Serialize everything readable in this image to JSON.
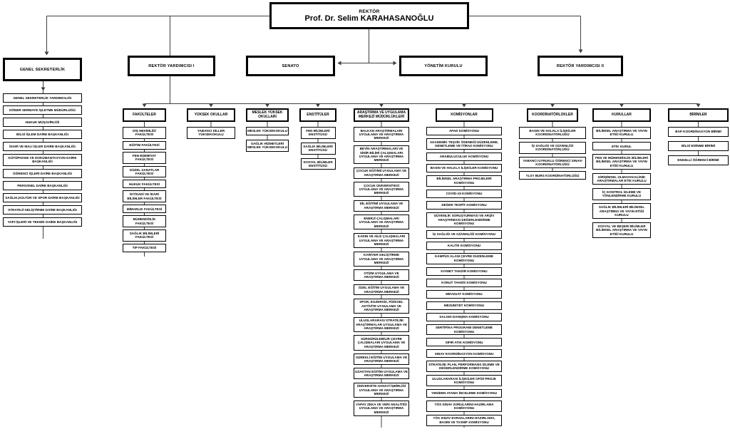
{
  "root": {
    "title": "REKTÖR",
    "name": "Prof. Dr. Selim KARAHASANOĞLU"
  },
  "level2": {
    "genel_sekreterlik": "GENEL SEKRETERLİK",
    "rektor_yardimcisi_1": "REKTÖR YARDIMCISI I",
    "senato": "SENATO",
    "yonetim_kurulu": "YÖNETİM KURULU",
    "rektor_yardimcisi_2": "REKTÖR YARDIMCISI II"
  },
  "genel_sekreterlik_units": [
    "GENEL SEKRETERLİK YARDIMCILIĞI",
    "DÖNER SERMAYE İŞLETME MÜDÜRLÜĞÜ",
    "HUKUK MÜŞAVİRLİĞİ",
    "BİLGİ İŞLEM DAİRE BAŞKANLIĞI",
    "İDARİ VE MALİ İŞLER DAİRE BAŞKANLIĞI",
    "KÜTÜPHANE VE DOKÜMANTASYON DAİRE BAŞKANLIĞI",
    "ÖĞRENCİ İŞLERİ DAİRE BAŞKANLIĞI",
    "PERSONEL DAİRE BAŞKANLIĞI",
    "SAĞLIK,KÜLTÜR VE SPOR DAİRE BAŞKANLIĞI",
    "STRATEJİ GELİŞTİRME DAİRE BAŞKANLIĞI",
    "YAPI İŞLERİ VE TEKNİK DAİRE BAŞKANLIĞI"
  ],
  "columns": [
    {
      "header": "FAKÜLTELER",
      "items": [
        "DİŞ HEKİMLİĞİ FAKÜLTESİ",
        "EĞİTİM FAKÜLTESİ",
        "FEN-EDEBİYAT FAKÜLTESİ",
        "GÜZEL SANATLAR FAKÜLTESİ",
        "HUKUK FAKÜLTESİ",
        "İKTİSADİ VE İDARİ BİLİMLER FAKÜLTESİ",
        "MİMARLIK FAKÜLTESİ",
        "MÜHENDİSLİK FAKÜLTESİ",
        "SAĞLIK BİLİMLERİ FAKÜLTESİ",
        "TIP FAKÜLTESİ"
      ]
    },
    {
      "header": "YÜKSEK OKULLAR",
      "items": [
        "YABANCI DİLLER YÜKSEKOKULU"
      ]
    },
    {
      "header": "MESLEK YÜKSEK OKULLARI",
      "items": [
        "MESLEK YÜKSEKOKULU",
        "SAĞLIK HİZMETLERİ MESLEK YÜKSEKOKULU"
      ]
    },
    {
      "header": "ENSTİTÜLER",
      "items": [
        "FEN BİLİMLERİ ENSTİTÜSÜ",
        "SAĞLIK BİLİMLERİ ENSTİTÜSÜ",
        "SOSYAL BİLİMLER ENSTİTÜSÜ"
      ]
    },
    {
      "header": "ARAŞTIRMA VE UYGULAMA MERKEZİ MÜDÜRLÜKLERİ",
      "items": [
        "BALKAN ARAŞTIRMALARI UYGULAMA VE ARAŞTIRMA MERKEZİ",
        "BEYİN ARAŞTIRMALARI VE SİNİR BİLİMİ ÇALIŞMALARI UYGULAMA VE ARAŞTIRMA MERKEZİ",
        "ÇOCUK EĞİTİMİ UYGULAMA VE ARAŞTIRMA MERKEZİ",
        "ÇOCUK ÜNİVERSİTESİ UYGULAMA VE ARAŞTIRMA MERKEZİ",
        "DİL EĞİTİMİ UYGULAMA VE ARAŞTIRMA MERKEZİ",
        "ENERJİ ÇALIŞMALARI UYGULAMA VE ARAŞTIRMA MERKEZİ",
        "KADIN VE AİLE ÇALIŞMALARI UYGULAMA VE ARAŞTIRMA MERKEZİ",
        "KARİYER GELİŞTİRME UYGULAMA VE ARAŞTIRMA MERKEZİ",
        "OTİZM UYGULAMA VE ARAŞTIRMA MERKEZİ",
        "ÖZEL EĞİTİM UYGULAMA VE ARAŞTIRMA MERKEZİ",
        "SPOR, EGZERSİZ, FİZİKSEL AKTİVİTE UYGULAMA VE ARAŞTIRMA MERKEZİ",
        "ULUSLARARASI STRATEJİK ARAŞTIRMALAR UYGULAMA VE ARAŞTIRMA MERKEZİ",
        "SÜRDÜRÜLEBİLİR ÇEVRE ÇALIŞMALARI UYGULAMA VE ARAŞTIRMA MERKEZİ",
        "SÜREKLİ EĞİTİM UYGULAMA VE ARAŞTIRMA MERKEZİ",
        "UZAKTAN EĞİTİM UYGULAMA VE ARAŞTIRMA MERKEZİ",
        "ÜNİVERSİTE-SANAYİ İŞBİRLİĞİ UYGULAMA VE ARAŞTIRMA MERKEZİ",
        "YAPAY ZEKA VE VERİ ANALİTİĞİ UYGULAMA VE ARAŞTIRMA MERKEZİ"
      ]
    },
    {
      "header": "KOMİSYONLAR",
      "items": [
        "AFAD KOMİSYONU",
        "AKADEMİK TEŞVİK ÖDENEĞİ DÜZENLEME, DENETLEME VE İTİRAZ KOMİSYONU",
        "ARABULUCULUK KOMİSYONU",
        "BASIN VE HALKLA İLİŞKİLER KOMİSYONU",
        "BİLİMSEL ARAŞTIRMA PROJELERİ KOMİSYONU",
        "COVİD-19 KOMİSYONU",
        "DEĞER TESPİT KOMİSYONU",
        "GÜVENLİK SORUŞTURMASI VE ARŞİV ARAŞTIRMASI DEĞERLENDİRME KOMİSYONU",
        "İŞ SAĞLIĞI VE GÜVENLİĞİ KOMİSYONU",
        "KALİTE KOMİSYONU",
        "KAMPÜS ALANI ÇEVRE DÜZENLEME KOMİSYONU",
        "KIYMET TAKDİR KOMİSYONU",
        "KONUT TAHSİS KOMİSYONU",
        "MEVZUAT KOMİSYONU",
        "MEZUNİYET KOMİSYONU",
        "SALGIN DANIŞMA KOMİSYONU",
        "SERTİFİKA PROGRAMI DENETLEME KOMİSYONU",
        "SIFIR ATIK KOMİSYONU",
        "SINAV KOORDİNASYON KOMİSYONU",
        "STRATEJİK PLAN, PERFORMANS İZLEME VE DEĞERLENDİRME KOMİSYONU",
        "ULUSLARARASI İLİŞKİLER OFİSİ PROJE KOMİSYONU",
        "YENİDEN ATAMA İNCELEME KOMİSYONU",
        "YÖS SINAV SORULARINI HAZIRLAMA KOMİSYONU",
        "YÖS SINAV EVRAKLARINI HAZIRLAMA, BASIM VE TASNİF KOMİSYONU"
      ]
    },
    {
      "header": "KOORDİNATÖRLÜKLER",
      "items": [
        "BASIN VE HALKLA İLİŞKİLER KOORDİNATÖRLÜĞÜ",
        "İŞ SAĞLIĞI VE GÜVENLİĞİ KOORDİNATÖRLÜĞÜ",
        "YABANCI UYRUKLU ÖĞRENCİ SINAVI KOORDİNATÖRLÜĞÜ",
        "YLSY BURS KOORDİNATÖRLÜĞÜ"
      ]
    },
    {
      "header": "KURULLAR",
      "items": [
        "BİLİMSEL ARAŞTIRMA VE YAYIN ETİĞİ KURULU",
        "ETİK KURUL",
        "FEN VE MÜHENDİSLİK BİLİMLERİ BİLİMSEL ARAŞTIRMA VE YAYIN ETİĞİ KURULU",
        "GİRİŞİMSEL OLMAYAN KLİNİK ARAŞTIRMALAR ETİK KURULU",
        "İÇ KONTROL İZLEME VE YÖNLENDİRME KURULU",
        "SAĞLIK BİLİMLERİ BİLİMSEL ARAŞTIRMA VE YAYIN ETİĞİ KURULU",
        "SOSYAL VE BEŞERİ BİLİMLER BİLİMSEL ARAŞTIRMA VE YAYIN ETİĞİ KURULU"
      ]
    },
    {
      "header": "BİRİMLER",
      "items": [
        "BAP KOORDİNASYON BİRİMİ",
        "BİLGİ EDİNME BİRİMİ",
        "ENGELLİ ÖĞRENCİ BİRİMİ"
      ]
    }
  ]
}
